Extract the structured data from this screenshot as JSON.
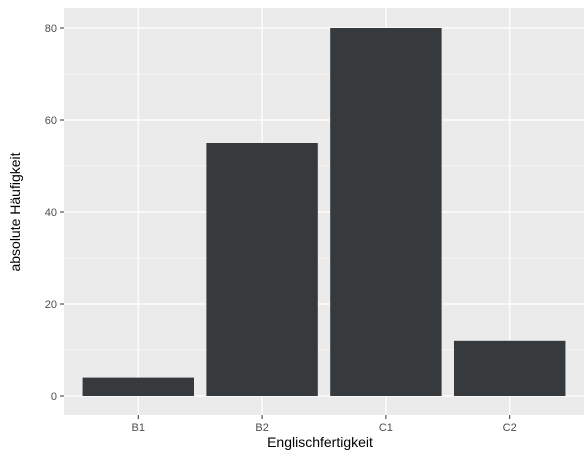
{
  "chart_data": {
    "type": "bar",
    "categories": [
      "B1",
      "B2",
      "C1",
      "C2"
    ],
    "values": [
      4,
      55,
      80,
      12
    ],
    "xlabel": "Englischfertigkeit",
    "ylabel": "absolute Häufigkeit",
    "ylim": [
      0,
      84
    ],
    "yticks": [
      0,
      20,
      40,
      60,
      80
    ],
    "grid": true,
    "colors": {
      "bar": "#373a3d",
      "panel": "#ebebeb",
      "grid": "#ffffff"
    }
  }
}
